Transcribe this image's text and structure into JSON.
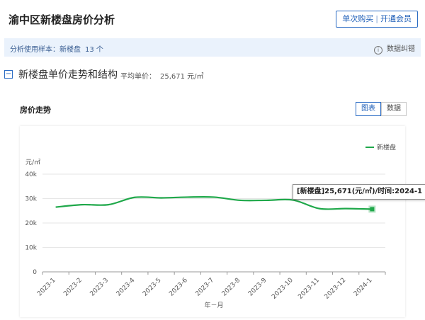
{
  "page": {
    "title": "渝中区新楼盘房价分析",
    "buy_button": {
      "single": "单次购买",
      "separator": "|",
      "member": "开通会员"
    }
  },
  "sample": {
    "prefix": "分析使用样本：",
    "type_label": "新楼盘",
    "count": "13 个",
    "report_link": "数据纠错",
    "info_icon": "i"
  },
  "section": {
    "collapse_symbol": "−",
    "title": "新楼盘单价走势和结构",
    "avg_price_label": "平均单价：",
    "avg_price_value": "25,671 元/㎡"
  },
  "trend": {
    "label": "房价走势",
    "toggle": {
      "chart": "图表",
      "data": "数据"
    }
  },
  "colors": {
    "series": "#1fa84a",
    "accent": "#2b6cc4"
  },
  "chart_data": {
    "type": "line",
    "x": [
      "2023-1",
      "2023-2",
      "2023-3",
      "2023-4",
      "2023-5",
      "2023-6",
      "2023-7",
      "2023-8",
      "2023-9",
      "2023-10",
      "2023-11",
      "2023-12",
      "2024-1"
    ],
    "series": [
      {
        "name": "新楼盘",
        "values": [
          26500,
          27500,
          27500,
          30500,
          30300,
          30600,
          30600,
          29300,
          29300,
          29400,
          25900,
          25900,
          25671
        ]
      }
    ],
    "ylim": [
      0,
      40000
    ],
    "yticks": [
      "0",
      "10k",
      "20k",
      "30k",
      "40k"
    ],
    "ylabel": "元/㎡",
    "xlabel": "年－月",
    "grid": true,
    "legend_position": "top-right",
    "tooltip": "[新楼盘]25,671(元/㎡)/时间:2024-1"
  }
}
